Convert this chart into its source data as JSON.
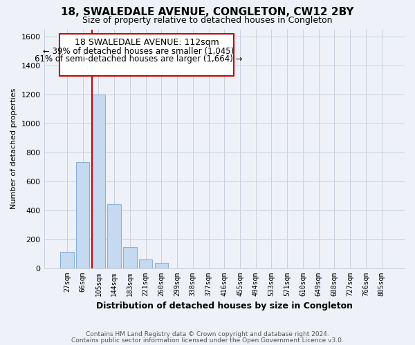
{
  "title": "18, SWALEDALE AVENUE, CONGLETON, CW12 2BY",
  "subtitle": "Size of property relative to detached houses in Congleton",
  "xlabel": "Distribution of detached houses by size in Congleton",
  "ylabel": "Number of detached properties",
  "bar_labels": [
    "27sqm",
    "66sqm",
    "105sqm",
    "144sqm",
    "183sqm",
    "221sqm",
    "260sqm",
    "299sqm",
    "338sqm",
    "377sqm",
    "416sqm",
    "455sqm",
    "494sqm",
    "533sqm",
    "571sqm",
    "610sqm",
    "649sqm",
    "688sqm",
    "727sqm",
    "766sqm",
    "805sqm"
  ],
  "bar_heights": [
    110,
    730,
    1200,
    440,
    145,
    60,
    35,
    0,
    0,
    0,
    0,
    0,
    0,
    0,
    0,
    0,
    0,
    0,
    0,
    0,
    0
  ],
  "bar_color": "#c5d9f0",
  "bar_edge_color": "#8ab0d8",
  "vline_x_index": 2,
  "vline_color": "#cc0000",
  "ylim": [
    0,
    1650
  ],
  "yticks": [
    0,
    200,
    400,
    600,
    800,
    1000,
    1200,
    1400,
    1600
  ],
  "annotation_title": "18 SWALEDALE AVENUE: 112sqm",
  "annotation_line1": "← 39% of detached houses are smaller (1,045)",
  "annotation_line2": "61% of semi-detached houses are larger (1,664) →",
  "box_color": "#cc0000",
  "footer_line1": "Contains HM Land Registry data © Crown copyright and database right 2024.",
  "footer_line2": "Contains public sector information licensed under the Open Government Licence v3.0.",
  "background_color": "#eef2f8",
  "plot_bg_color": "#eef2f8",
  "grid_color": "#c8d0dc"
}
